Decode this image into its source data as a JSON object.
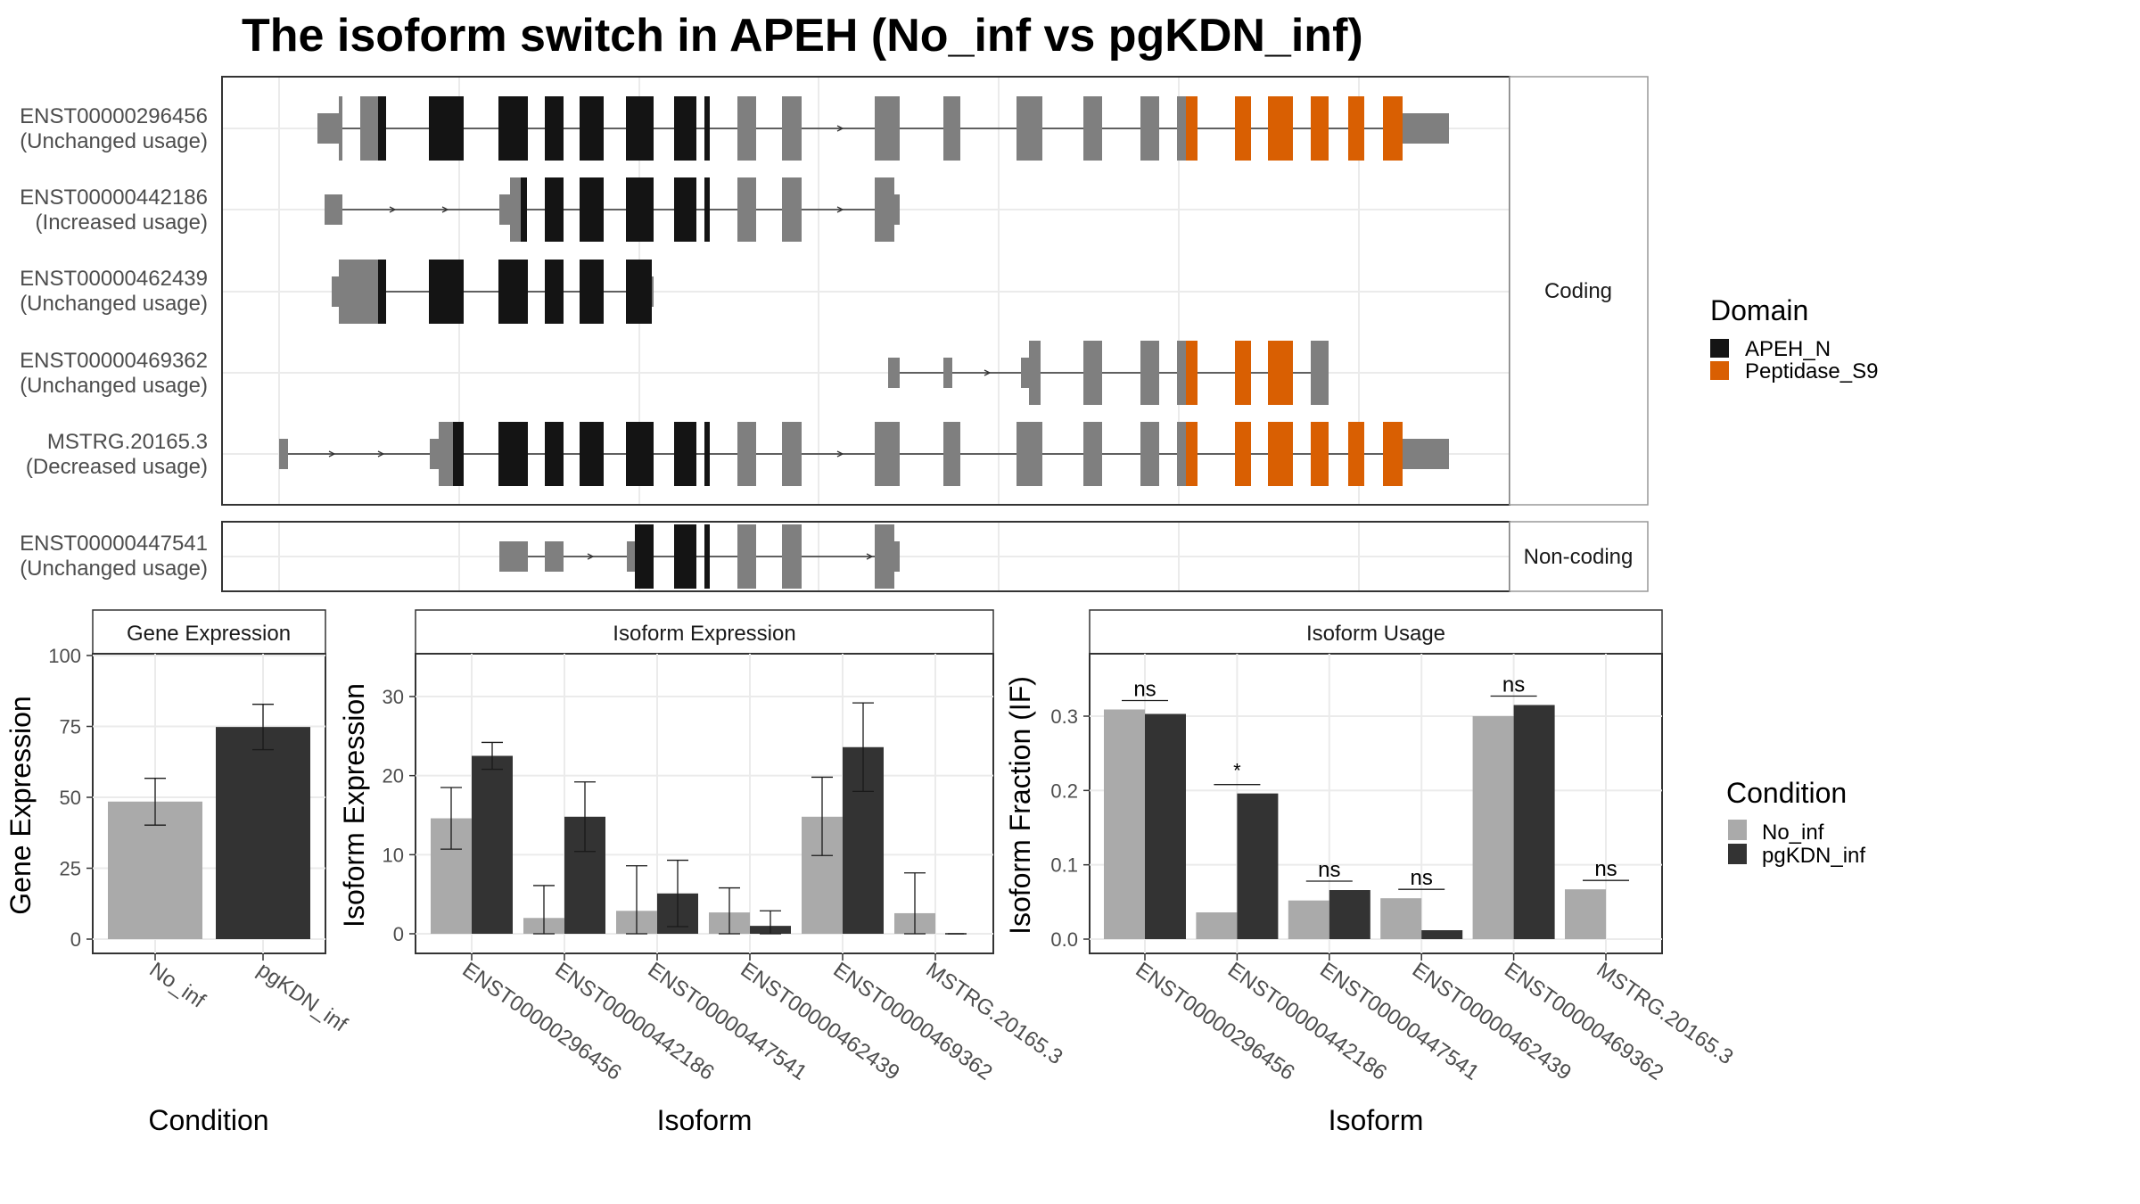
{
  "title": "The isoform switch in APEH (No_inf vs pgKDN_inf)",
  "colors": {
    "no_inf": "#aaaaaa",
    "pgkdn_inf": "#333333",
    "apeh_n": "#141414",
    "peptidase_s9": "#d95f02",
    "non_domain": "#7f7f7f",
    "panel_border": "#333333",
    "strip_fill": "#ffffff",
    "grid": "#ebebeb"
  },
  "domain_legend": {
    "title": "Domain",
    "items": [
      {
        "label": "APEH_N",
        "color": "#141414"
      },
      {
        "label": "Peptidase_S9",
        "color": "#d95f02"
      }
    ]
  },
  "condition_legend": {
    "title": "Condition",
    "items": [
      {
        "label": "No_inf",
        "color": "#aaaaaa"
      },
      {
        "label": "pgKDN_inf",
        "color": "#333333"
      }
    ]
  },
  "transcript_strips": {
    "coding": "Coding",
    "noncoding": "Non-coding"
  },
  "transcripts": [
    {
      "id": "ENST00000296456",
      "usage": "(Unchanged usage)",
      "group": "coding"
    },
    {
      "id": "ENST00000442186",
      "usage": "(Increased usage)",
      "group": "coding"
    },
    {
      "id": "ENST00000462439",
      "usage": "(Unchanged usage)",
      "group": "coding"
    },
    {
      "id": "ENST00000469362",
      "usage": "(Unchanged usage)",
      "group": "coding"
    },
    {
      "id": "MSTRG.20165.3",
      "usage": "(Decreased usage)",
      "group": "coding"
    },
    {
      "id": "ENST00000447541",
      "usage": "(Unchanged usage)",
      "group": "noncoding"
    }
  ],
  "chart_data": [
    {
      "type": "bar",
      "title": "Gene Expression",
      "xlabel": "Condition",
      "ylabel": "Gene Expression",
      "categories": [
        "No_inf",
        "pgKDN_inf"
      ],
      "values": [
        48.5,
        74.8
      ],
      "error": [
        [
          40.2,
          56.7
        ],
        [
          66.8,
          82.8
        ]
      ],
      "ylim": [
        0,
        100
      ],
      "yticks": [
        0,
        25,
        50,
        75,
        100
      ],
      "grid": true
    },
    {
      "type": "bar",
      "title": "Isoform Expression",
      "xlabel": "Isoform",
      "ylabel": "Isoform Expression",
      "categories": [
        "ENST00000296456",
        "ENST00000442186",
        "ENST00000447541",
        "ENST00000462439",
        "ENST00000469362",
        "MSTRG.20165.3"
      ],
      "series": [
        {
          "name": "No_inf",
          "values": [
            14.6,
            2.0,
            2.9,
            2.7,
            14.8,
            2.6
          ],
          "error": [
            [
              10.7,
              18.5
            ],
            [
              0,
              6.1
            ],
            [
              0,
              8.6
            ],
            [
              0,
              5.8
            ],
            [
              9.9,
              19.8
            ],
            [
              0,
              7.7
            ]
          ]
        },
        {
          "name": "pgKDN_inf",
          "values": [
            22.5,
            14.8,
            5.1,
            1.0,
            23.6,
            0
          ],
          "error": [
            [
              20.8,
              24.2
            ],
            [
              10.4,
              19.2
            ],
            [
              0.9,
              9.3
            ],
            [
              0,
              2.9
            ],
            [
              18.0,
              29.2
            ],
            [
              0,
              0
            ]
          ]
        }
      ],
      "ylim": [
        -1.5,
        35
      ],
      "yticks": [
        0,
        10,
        20,
        30
      ],
      "grid": true
    },
    {
      "type": "bar",
      "title": "Isoform Usage",
      "xlabel": "Isoform",
      "ylabel": "Isoform Fraction (IF)",
      "categories": [
        "ENST00000296456",
        "ENST00000442186",
        "ENST00000447541",
        "ENST00000462439",
        "ENST00000469362",
        "MSTRG.20165.3"
      ],
      "series": [
        {
          "name": "No_inf",
          "values": [
            0.309,
            0.036,
            0.052,
            0.055,
            0.3,
            0.067
          ]
        },
        {
          "name": "pgKDN_inf",
          "values": [
            0.303,
            0.196,
            0.066,
            0.012,
            0.315,
            0.0
          ]
        }
      ],
      "significance": [
        "ns",
        "*",
        "ns",
        "ns",
        "ns",
        "ns"
      ],
      "ylim": [
        -0.015,
        0.385
      ],
      "yticks": [
        0.0,
        0.1,
        0.2,
        0.3
      ],
      "grid": true
    }
  ]
}
